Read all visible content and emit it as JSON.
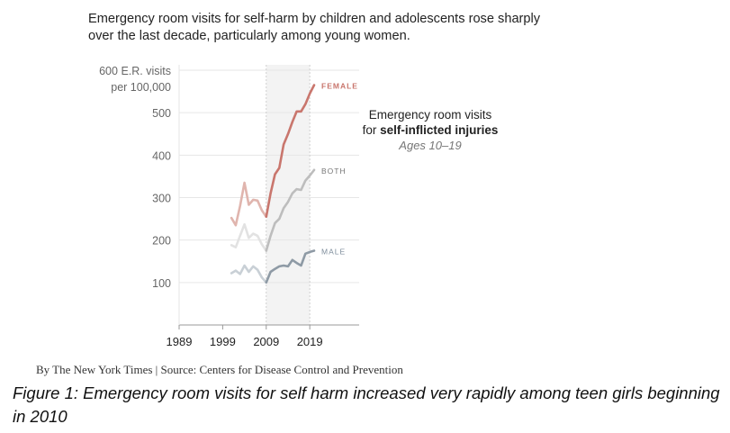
{
  "headline": "Emergency room visits for self-harm by children and adolescents rose sharply over the last decade, particularly among young women.",
  "annotation": {
    "line1": "Emergency room visits",
    "line2_prefix": "for ",
    "line2_bold": "self-inflicted injuries",
    "line3": "Ages 10–19"
  },
  "source": "By The New York Times | Source: Centers for Disease Control and Prevention",
  "caption": "Figure 1: Emergency room visits for self harm increased very rapidly among teen girls beginning in 2010",
  "colors": {
    "female": "#c9766d",
    "female_faded": "#e0b5ae",
    "both": "#bdbdbd",
    "both_faded": "#e2e2e2",
    "male": "#8e9aa5",
    "male_faded": "#c9d0d6",
    "grid": "#e6e6e6",
    "axis": "#999999",
    "shade": "#f3f3f3",
    "text": "#222222",
    "tick_text": "#666666"
  },
  "chart_data": {
    "type": "line",
    "title": "Emergency room visits for self-inflicted injuries, Ages 10–19",
    "ylabel": "E.R. visits per 100,000",
    "top_tick_label": [
      "600 E.R. visits",
      "per 100,000"
    ],
    "xlim": [
      1989,
      2020
    ],
    "ylim": [
      0,
      600
    ],
    "yticks": [
      100,
      200,
      300,
      400,
      500,
      600
    ],
    "ytick_labels": [
      "100",
      "200",
      "300",
      "400",
      "500"
    ],
    "xticks": [
      1989,
      1999,
      2009,
      2019
    ],
    "xtick_labels": [
      "1989",
      "1999",
      "2009",
      "2019"
    ],
    "shaded_range": [
      2009,
      2019
    ],
    "x": [
      2001,
      2002,
      2003,
      2004,
      2005,
      2006,
      2007,
      2008,
      2009,
      2010,
      2011,
      2012,
      2013,
      2014,
      2015,
      2016,
      2017,
      2018,
      2019,
      2020
    ],
    "series": [
      {
        "name": "FEMALE",
        "label": "FEMALE",
        "values": [
          252,
          235,
          280,
          335,
          283,
          295,
          293,
          270,
          255,
          310,
          355,
          370,
          425,
          450,
          478,
          503,
          503,
          520,
          545,
          565
        ]
      },
      {
        "name": "BOTH",
        "label": "BOTH",
        "values": [
          188,
          183,
          210,
          237,
          205,
          215,
          210,
          190,
          175,
          210,
          240,
          250,
          275,
          290,
          310,
          320,
          318,
          340,
          352,
          365
        ]
      },
      {
        "name": "MALE",
        "label": "MALE",
        "values": [
          122,
          128,
          120,
          140,
          125,
          138,
          130,
          112,
          100,
          125,
          132,
          138,
          140,
          138,
          153,
          146,
          140,
          168,
          172,
          175
        ]
      }
    ]
  }
}
